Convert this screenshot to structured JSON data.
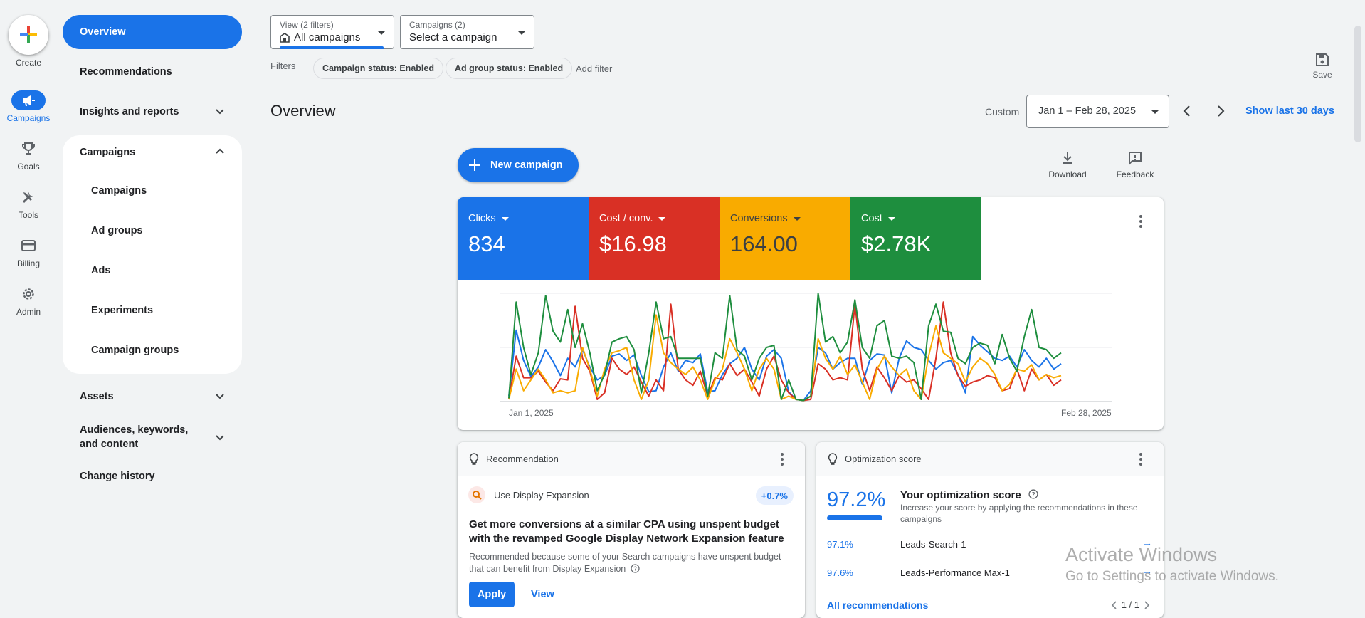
{
  "rail": {
    "create_label": "Create",
    "items": [
      {
        "label": "Campaigns",
        "icon": "campaigns-megaphone-icon",
        "active": true
      },
      {
        "label": "Goals",
        "icon": "trophy-icon"
      },
      {
        "label": "Tools",
        "icon": "tools-icon"
      },
      {
        "label": "Billing",
        "icon": "credit-card-icon"
      },
      {
        "label": "Admin",
        "icon": "gear-icon"
      }
    ]
  },
  "nav": {
    "overview": "Overview",
    "recommendations": "Recommendations",
    "insights": "Insights and reports",
    "campaigns_group": "Campaigns",
    "sub": [
      "Campaigns",
      "Ad groups",
      "Ads",
      "Experiments",
      "Campaign groups"
    ],
    "assets": "Assets",
    "audiences": "Audiences, keywords, and content",
    "change_history": "Change history"
  },
  "topbar": {
    "view_caption": "View (2 filters)",
    "view_value": "All campaigns",
    "campaigns_caption": "Campaigns (2)",
    "campaigns_value": "Select a campaign",
    "filters_label": "Filters",
    "chips": [
      "Campaign status: Enabled",
      "Ad group status: Enabled"
    ],
    "add_filter": "Add filter",
    "save_label": "Save"
  },
  "header": {
    "title": "Overview",
    "custom_label": "Custom",
    "date_range": "Jan 1 – Feb 28, 2025",
    "show_last": "Show last 30 days"
  },
  "actions": {
    "new_campaign": "New campaign",
    "download": "Download",
    "feedback": "Feedback"
  },
  "metrics": [
    {
      "label": "Clicks",
      "value": "834",
      "color": "#1a73e8"
    },
    {
      "label": "Cost / conv.",
      "value": "$16.98",
      "color": "#d93025"
    },
    {
      "label": "Conversions",
      "value": "164.00",
      "color": "#f9ab00"
    },
    {
      "label": "Cost",
      "value": "$2.78K",
      "color": "#1e8e3e"
    }
  ],
  "chart_data": {
    "type": "line",
    "title": "",
    "x_start_label": "Jan 1, 2025",
    "x_end_label": "Feb 28, 2025",
    "ylim": [
      0,
      100
    ],
    "grid": true,
    "series": [
      {
        "name": "Clicks",
        "color": "#1a73e8",
        "values": [
          5,
          66,
          38,
          23,
          32,
          48,
          37,
          24,
          40,
          32,
          48,
          32,
          20,
          24,
          42,
          44,
          38,
          43,
          24,
          9,
          10,
          32,
          45,
          28,
          38,
          36,
          44,
          9,
          10,
          25,
          35,
          40,
          50,
          30,
          20,
          42,
          48,
          40,
          9,
          2,
          1,
          10,
          50,
          45,
          30,
          36,
          40,
          40,
          16,
          38,
          44,
          43,
          8,
          40,
          56,
          50,
          48,
          38,
          30,
          36,
          38,
          25,
          8,
          60,
          52,
          46,
          40,
          38,
          42,
          32,
          48,
          38,
          32,
          40,
          30,
          35
        ]
      },
      {
        "name": "Cost / conv.",
        "color": "#d93025",
        "values": [
          2,
          42,
          22,
          22,
          28,
          18,
          10,
          21,
          20,
          88,
          40,
          28,
          2,
          8,
          40,
          30,
          25,
          32,
          18,
          5,
          20,
          10,
          90,
          30,
          20,
          15,
          28,
          5,
          22,
          20,
          35,
          24,
          30,
          18,
          5,
          30,
          42,
          20,
          8,
          2,
          1,
          2,
          35,
          30,
          20,
          22,
          20,
          90,
          30,
          10,
          32,
          22,
          10,
          24,
          18,
          20,
          12,
          2,
          40,
          92,
          45,
          24,
          14,
          18,
          20,
          24,
          22,
          10,
          12,
          30,
          10,
          30,
          20,
          25,
          15,
          20
        ]
      },
      {
        "name": "Conversions",
        "color": "#f9ab00",
        "values": [
          2,
          30,
          10,
          20,
          30,
          20,
          8,
          10,
          8,
          10,
          50,
          30,
          5,
          30,
          45,
          47,
          50,
          20,
          2,
          20,
          80,
          45,
          36,
          30,
          25,
          32,
          20,
          2,
          20,
          30,
          58,
          45,
          30,
          10,
          30,
          40,
          30,
          2,
          5,
          2,
          1,
          5,
          58,
          40,
          30,
          42,
          25,
          34,
          18,
          2,
          30,
          42,
          32,
          24,
          30,
          10,
          2,
          42,
          70,
          45,
          40,
          35,
          18,
          32,
          40,
          35,
          25,
          10,
          16,
          30,
          28,
          34,
          20,
          25,
          22,
          24
        ]
      },
      {
        "name": "Cost",
        "color": "#1e8e3e",
        "values": [
          3,
          92,
          50,
          25,
          45,
          98,
          65,
          55,
          85,
          50,
          72,
          45,
          10,
          25,
          55,
          58,
          60,
          48,
          8,
          45,
          92,
          58,
          60,
          40,
          40,
          40,
          40,
          5,
          45,
          40,
          98,
          48,
          42,
          20,
          40,
          50,
          52,
          2,
          20,
          2,
          1,
          5,
          100,
          55,
          60,
          45,
          55,
          94,
          50,
          40,
          70,
          75,
          42,
          40,
          42,
          36,
          2,
          70,
          90,
          65,
          64,
          40,
          35,
          50,
          54,
          52,
          35,
          62,
          40,
          28,
          60,
          85,
          50,
          48,
          40,
          45
        ]
      }
    ]
  },
  "recommendation": {
    "header": "Recommendation",
    "title": "Use Display Expansion",
    "badge": "+0.7%",
    "headline": "Get more conversions at a similar CPA using unspent budget with the revamped Google Display Network Expansion feature",
    "body": "Recommended because some of your Search campaigns have unspent budget that can benefit from Display Expansion",
    "apply": "Apply",
    "view": "View"
  },
  "optimization": {
    "header": "Optimization score",
    "score": "97.2%",
    "score_fraction": 0.972,
    "title": "Your optimization score",
    "desc": "Increase your score by applying the recommendations in these campaigns",
    "rows": [
      {
        "value": "97.1%",
        "name": "Leads-Search-1"
      },
      {
        "value": "97.6%",
        "name": "Leads-Performance Max-1"
      }
    ],
    "all": "All recommendations",
    "pager": "1 / 1"
  },
  "watermark": {
    "line1": "Activate Windows",
    "line2": "Go to Settings to activate Windows."
  }
}
